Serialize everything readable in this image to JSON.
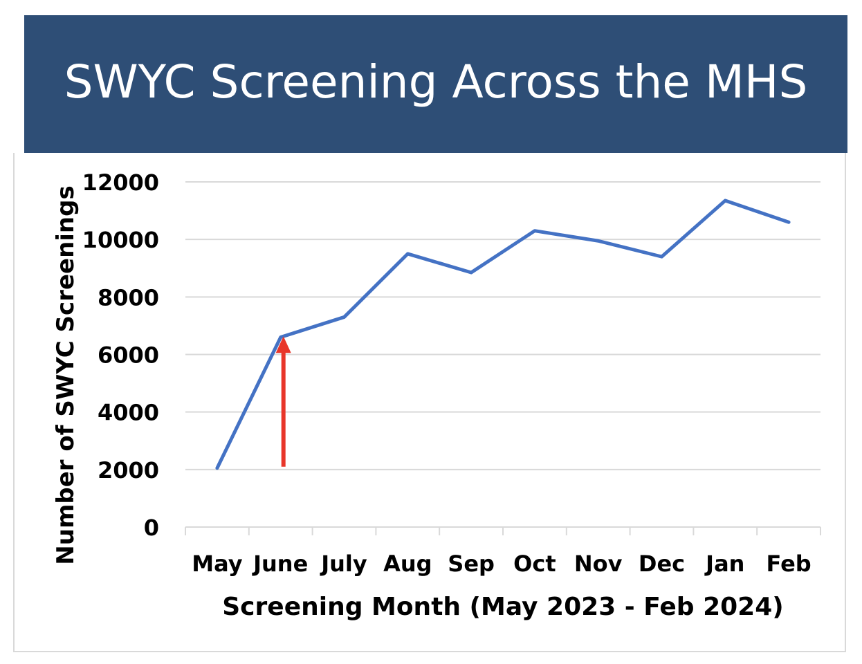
{
  "title": "SWYC Screening Across the MHS",
  "colors": {
    "banner": "#2e4e76",
    "line": "#4472c4",
    "arrow": "#e8362a",
    "grid": "#d9d9d9"
  },
  "chart_data": {
    "type": "line",
    "title": "",
    "xlabel": "Screening Month (May 2023 - Feb 2024)",
    "ylabel": "Number of SWYC Screenings",
    "categories": [
      "May",
      "June",
      "July",
      "Aug",
      "Sep",
      "Oct",
      "Nov",
      "Dec",
      "Jan",
      "Feb"
    ],
    "series": [
      {
        "values": [
          2050,
          6600,
          7300,
          9500,
          8850,
          10300,
          9950,
          9400,
          11350,
          10600
        ]
      }
    ],
    "ylim": [
      0,
      12000
    ],
    "yticks": [
      0,
      2000,
      4000,
      6000,
      8000,
      10000,
      12000
    ],
    "grid": true,
    "legend": "none",
    "annotations": [
      {
        "type": "arrow",
        "category": "June",
        "from_value": 2050,
        "to_value": 6150
      }
    ]
  }
}
